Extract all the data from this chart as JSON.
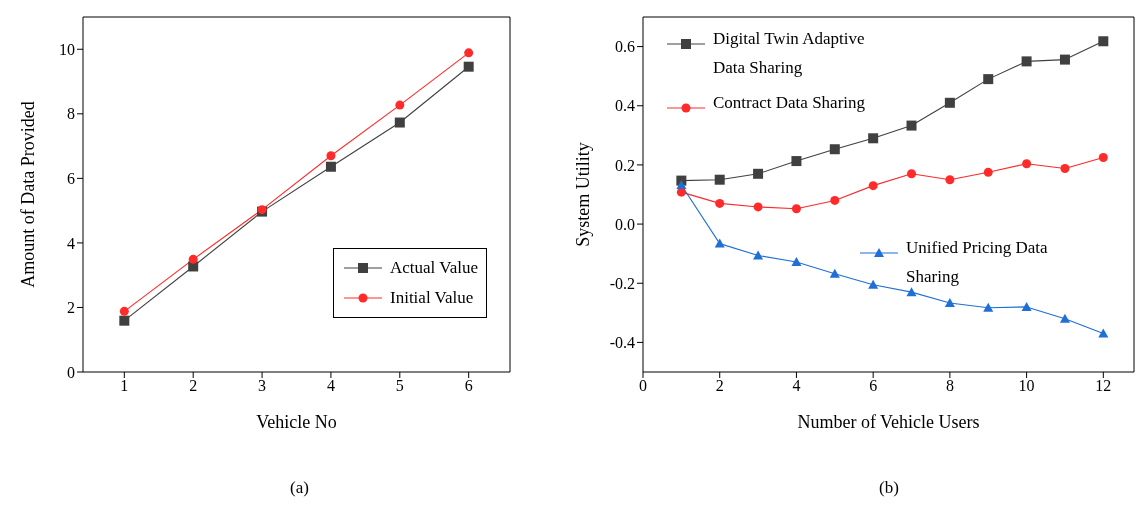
{
  "chart_data": [
    {
      "type": "line",
      "xlabel": "Vehicle No",
      "ylabel": "Amount of Data Provided",
      "annotations": [
        "(a)"
      ],
      "x": [
        1,
        2,
        3,
        4,
        5,
        6
      ],
      "xlim": [
        0.4,
        6.6
      ],
      "xticks": [
        1,
        2,
        3,
        4,
        5,
        6
      ],
      "ylim": [
        0,
        11
      ],
      "yticks": [
        0,
        2,
        4,
        6,
        8,
        10
      ],
      "legend": "right",
      "series": [
        {
          "name": "Actual Value",
          "color": "#404040",
          "marker": "square",
          "values": [
            1.59,
            3.27,
            4.97,
            6.36,
            7.73,
            9.46
          ]
        },
        {
          "name": "Initial Value",
          "color": "#ff2a2a",
          "marker": "circle",
          "values": [
            1.88,
            3.49,
            5.03,
            6.7,
            8.27,
            9.89
          ]
        }
      ]
    },
    {
      "type": "line",
      "xlabel": "Number of Vehicle Users",
      "ylabel": "System Utility",
      "annotations": [
        "(b)"
      ],
      "x": [
        1,
        2,
        3,
        4,
        5,
        6,
        7,
        8,
        9,
        10,
        11,
        12
      ],
      "xlim": [
        0,
        12.8
      ],
      "xticks": [
        0,
        2,
        4,
        6,
        8,
        10,
        12
      ],
      "ylim": [
        -0.5,
        0.7
      ],
      "yticks": [
        -0.4,
        -0.2,
        {
          "value": 0,
          "label": "0.0"
        },
        0.2,
        0.4,
        0.6
      ],
      "legend": "top left",
      "series": [
        {
          "name": "Digital Twin Adaptive Data Sharing",
          "color": "#404040",
          "marker": "square",
          "values": [
            0.147,
            0.15,
            0.17,
            0.213,
            0.253,
            0.29,
            0.333,
            0.41,
            0.49,
            0.55,
            0.556,
            0.618
          ]
        },
        {
          "name": "Contract Data Sharing",
          "color": "#ff2a2a",
          "marker": "circle",
          "values": [
            0.108,
            0.07,
            0.058,
            0.052,
            0.08,
            0.13,
            0.17,
            0.15,
            0.175,
            0.204,
            0.188,
            0.225
          ]
        },
        {
          "name": "Unified Pricing Data Sharing",
          "color": "#1f6fd6",
          "marker": "triangle",
          "values": [
            0.132,
            -0.066,
            -0.106,
            -0.128,
            -0.168,
            -0.205,
            -0.23,
            -0.267,
            -0.283,
            -0.28,
            -0.32,
            -0.37
          ]
        }
      ]
    }
  ]
}
